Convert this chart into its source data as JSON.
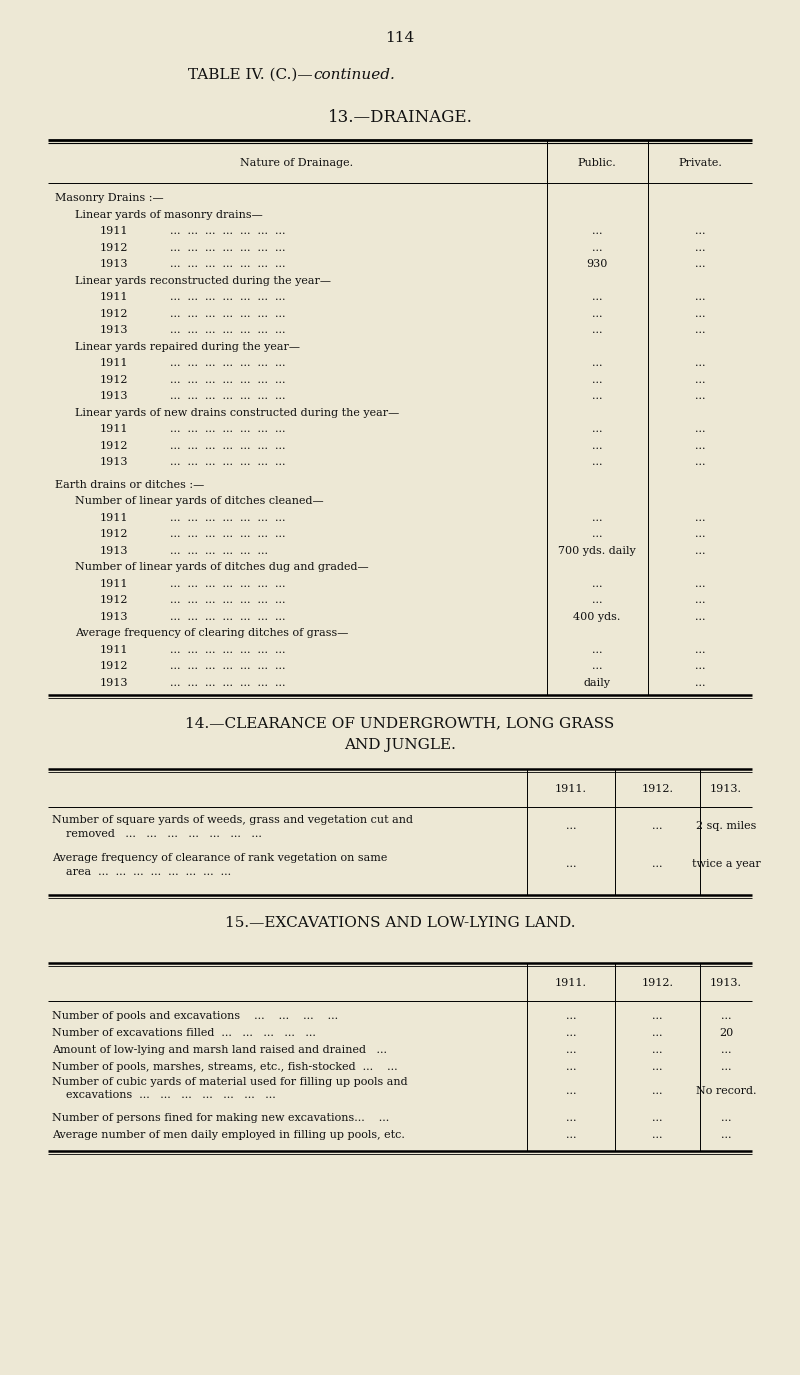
{
  "bg_color": "#ede8d5",
  "text_color": "#111111",
  "page_number": "114",
  "section13_title": "13.—DRAINAGE.",
  "section14_title_line1": "14.—CLEARANCE OF UNDERGROWTH, LONG GRASS",
  "section14_title_line2": "AND JUNGLE.",
  "section15_title": "15.—EXCAVATIONS AND LOW-LYING LAND.",
  "drainage_col_header": [
    "Nature of Drainage.",
    "Public.",
    "Private."
  ],
  "drainage_rows": [
    {
      "indent": 0,
      "text": "Masonry Drains :—",
      "pub": "",
      "priv": ""
    },
    {
      "indent": 1,
      "text": "Linear yards of masonry drains—",
      "pub": "",
      "priv": ""
    },
    {
      "indent": 2,
      "text": "1911",
      "dots": "...  ...  ...  ...  ...  ...  ...",
      "pub": "...",
      "priv": "..."
    },
    {
      "indent": 2,
      "text": "1912",
      "dots": "...  ...  ...  ...  ...  ...  ...",
      "pub": "...",
      "priv": "..."
    },
    {
      "indent": 2,
      "text": "1913",
      "dots": "...  ...  ...  ...  ...  ...  ...",
      "pub": "930",
      "priv": "..."
    },
    {
      "indent": 1,
      "text": "Linear yards reconstructed during the year—",
      "pub": "",
      "priv": ""
    },
    {
      "indent": 2,
      "text": "1911",
      "dots": "...  ...  ...  ...  ...  ...  ...",
      "pub": "...",
      "priv": "..."
    },
    {
      "indent": 2,
      "text": "1912",
      "dots": "...  ...  ...  ...  ...  ...  ...",
      "pub": "...",
      "priv": "..."
    },
    {
      "indent": 2,
      "text": "1913",
      "dots": "...  ...  ...  ...  ...  ...  ...",
      "pub": "...",
      "priv": "..."
    },
    {
      "indent": 1,
      "text": "Linear yards repaired during the year—",
      "pub": "",
      "priv": ""
    },
    {
      "indent": 2,
      "text": "1911",
      "dots": "...  ...  ...  ...  ...  ...  ...",
      "pub": "...",
      "priv": "..."
    },
    {
      "indent": 2,
      "text": "1912",
      "dots": "...  ...  ...  ...  ...  ...  ...",
      "pub": "...",
      "priv": "..."
    },
    {
      "indent": 2,
      "text": "1913",
      "dots": "...  ...  ...  ...  ...  ...  ...",
      "pub": "...",
      "priv": "..."
    },
    {
      "indent": 1,
      "text": "Linear yards of new drains constructed during the year—",
      "pub": "",
      "priv": ""
    },
    {
      "indent": 2,
      "text": "1911",
      "dots": "...  ...  ...  ...  ...  ...  ...",
      "pub": "...",
      "priv": "..."
    },
    {
      "indent": 2,
      "text": "1912",
      "dots": "...  ...  ...  ...  ...  ...  ...",
      "pub": "...",
      "priv": "..."
    },
    {
      "indent": 2,
      "text": "1913",
      "dots": "...  ...  ...  ...  ...  ...  ...",
      "pub": "...",
      "priv": "..."
    },
    {
      "indent": -1,
      "text": "",
      "pub": "",
      "priv": ""
    },
    {
      "indent": 0,
      "text": "Earth drains or ditches :—",
      "pub": "",
      "priv": ""
    },
    {
      "indent": 1,
      "text": "Number of linear yards of ditches cleaned—",
      "pub": "",
      "priv": ""
    },
    {
      "indent": 2,
      "text": "1911",
      "dots": "...  ...  ...  ...  ...  ...  ...",
      "pub": "...",
      "priv": "..."
    },
    {
      "indent": 2,
      "text": "1912",
      "dots": "...  ...  ...  ...  ...  ...  ...",
      "pub": "...",
      "priv": "..."
    },
    {
      "indent": 2,
      "text": "1913",
      "dots": "...  ...  ...  ...  ...  ...",
      "pub": "700 yds. daily",
      "priv": "..."
    },
    {
      "indent": 1,
      "text": "Number of linear yards of ditches dug and graded—",
      "pub": "",
      "priv": ""
    },
    {
      "indent": 2,
      "text": "1911",
      "dots": "...  ...  ...  ...  ...  ...  ...",
      "pub": "...",
      "priv": "..."
    },
    {
      "indent": 2,
      "text": "1912",
      "dots": "...  ...  ...  ...  ...  ...  ...",
      "pub": "...",
      "priv": "..."
    },
    {
      "indent": 2,
      "text": "1913",
      "dots": "...  ...  ...  ...  ...  ...  ...",
      "pub": "400 yds.",
      "priv": "..."
    },
    {
      "indent": 1,
      "text": "Average frequency of clearing ditches of grass—",
      "pub": "",
      "priv": ""
    },
    {
      "indent": 2,
      "text": "1911",
      "dots": "...  ...  ...  ...  ...  ...  ...",
      "pub": "...",
      "priv": "..."
    },
    {
      "indent": 2,
      "text": "1912",
      "dots": "...  ...  ...  ...  ...  ...  ...",
      "pub": "...",
      "priv": "..."
    },
    {
      "indent": 2,
      "text": "1913",
      "dots": "...  ...  ...  ...  ...  ...  ...",
      "pub": "daily",
      "priv": "..."
    }
  ],
  "clearance_rows": [
    {
      "desc_line1": "Number of square yards of weeds, grass and vegetation cut and",
      "desc_line2": "    removed   ...   ...   ...   ...   ...   ...   ...",
      "y1911": "...",
      "y1912": "...",
      "y1913": "2 sq. miles"
    },
    {
      "desc_line1": "Average frequency of clearance of rank vegetation on same",
      "desc_line2": "    area  ...  ...  ...  ...  ...  ...  ...  ...",
      "y1911": "...",
      "y1912": "...",
      "y1913": "twice a year"
    }
  ],
  "excavation_rows": [
    {
      "desc": "Number of pools and excavations    ...    ...    ...    ...",
      "y1911": "...",
      "y1912": "...",
      "y1913": "..."
    },
    {
      "desc": "Number of excavations filled  ...   ...   ...   ...   ...",
      "y1911": "...",
      "y1912": "...",
      "y1913": "20"
    },
    {
      "desc": "Amount of low-lying and marsh land raised and drained   ...",
      "y1911": "...",
      "y1912": "...",
      "y1913": "..."
    },
    {
      "desc": "Number of pools, marshes, streams, etc., fish-stocked  ...    ...",
      "y1911": "...",
      "y1912": "...",
      "y1913": "..."
    },
    {
      "desc_line1": "Number of cubic yards of material used for filling up pools and",
      "desc_line2": "    excavations  ...   ...   ...   ...   ...   ...   ...",
      "y1911": "...",
      "y1912": "...",
      "y1913": "No record."
    },
    {
      "desc": "Number of persons fined for making new excavations...    ...",
      "y1911": "...",
      "y1912": "...",
      "y1913": "..."
    },
    {
      "desc": "Average number of men daily employed in filling up pools, etc.",
      "y1911": "...",
      "y1912": "...",
      "y1913": "..."
    }
  ]
}
